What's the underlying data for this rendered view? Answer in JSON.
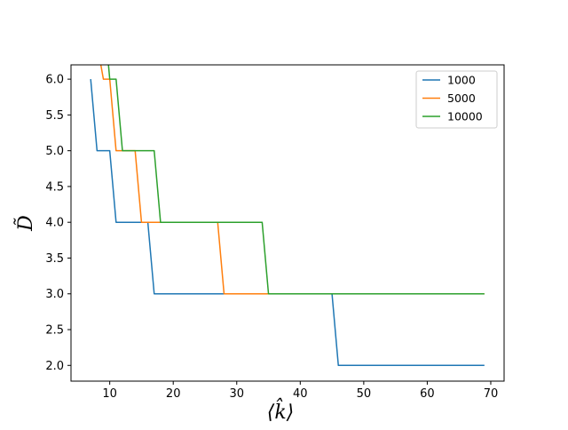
{
  "chart_data": {
    "type": "line",
    "title": "",
    "xlabel": "⟨k̂⟩",
    "ylabel": "D̃",
    "xlim": [
      3.9,
      72.1
    ],
    "ylim": [
      1.78,
      6.2
    ],
    "xticks": [
      10,
      20,
      30,
      40,
      50,
      60,
      70
    ],
    "yticks": [
      2.0,
      2.5,
      3.0,
      3.5,
      4.0,
      4.5,
      5.0,
      5.5,
      6.0
    ],
    "grid": false,
    "legend_position": "top-right",
    "series": [
      {
        "name": "1000",
        "color": "#1f77b4",
        "points": [
          [
            7,
            6.0
          ],
          [
            8,
            5.0
          ],
          [
            10,
            5.0
          ],
          [
            11,
            4.0
          ],
          [
            16,
            4.0
          ],
          [
            17,
            3.0
          ],
          [
            45,
            3.0
          ],
          [
            46,
            2.0
          ],
          [
            69,
            2.0
          ]
        ]
      },
      {
        "name": "5000",
        "color": "#ff7f0e",
        "points": [
          [
            8.6,
            6.2
          ],
          [
            9,
            6.0
          ],
          [
            10,
            6.0
          ],
          [
            11,
            5.0
          ],
          [
            14,
            5.0
          ],
          [
            15,
            4.0
          ],
          [
            27,
            4.0
          ],
          [
            28,
            3.0
          ],
          [
            69,
            3.0
          ]
        ]
      },
      {
        "name": "10000",
        "color": "#2ca02c",
        "points": [
          [
            9.8,
            6.2
          ],
          [
            10,
            6.0
          ],
          [
            11,
            6.0
          ],
          [
            12,
            5.0
          ],
          [
            17,
            5.0
          ],
          [
            18,
            4.0
          ],
          [
            34,
            4.0
          ],
          [
            35,
            3.0
          ],
          [
            69,
            3.0
          ]
        ]
      }
    ]
  }
}
